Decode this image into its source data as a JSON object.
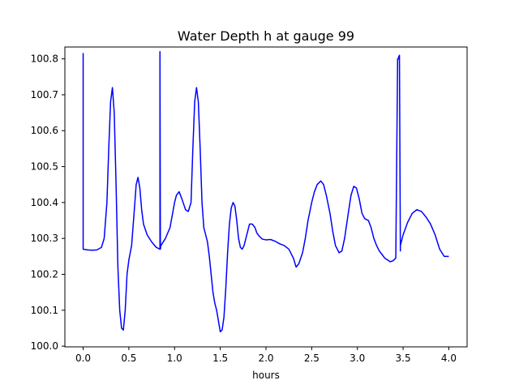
{
  "chart_data": {
    "type": "line",
    "title": "Water Depth h at gauge 99",
    "xlabel": "hours",
    "ylabel": "",
    "xlim": [
      -0.2,
      4.2
    ],
    "ylim": [
      99.998,
      100.833
    ],
    "xticks": [
      0.0,
      0.5,
      1.0,
      1.5,
      2.0,
      2.5,
      3.0,
      3.5,
      4.0
    ],
    "xtick_labels": [
      "0.0",
      "0.5",
      "1.0",
      "1.5",
      "2.0",
      "2.5",
      "3.0",
      "3.5",
      "4.0"
    ],
    "yticks": [
      100.0,
      100.1,
      100.2,
      100.3,
      100.4,
      100.5,
      100.6,
      100.7,
      100.8
    ],
    "ytick_labels": [
      "100.0",
      "100.1",
      "100.2",
      "100.3",
      "100.4",
      "100.5",
      "100.6",
      "100.7",
      "100.8"
    ],
    "grid": false,
    "legend": "none",
    "series": [
      {
        "color": "#0000ff",
        "x": [
          0.0,
          0.0,
          0.0,
          0.05,
          0.1,
          0.15,
          0.2,
          0.23,
          0.26,
          0.28,
          0.3,
          0.32,
          0.34,
          0.36,
          0.38,
          0.4,
          0.42,
          0.44,
          0.46,
          0.48,
          0.5,
          0.53,
          0.56,
          0.58,
          0.6,
          0.62,
          0.64,
          0.66,
          0.7,
          0.75,
          0.8,
          0.84,
          0.84,
          0.845,
          0.85,
          0.9,
          0.95,
          1.0,
          1.02,
          1.05,
          1.08,
          1.12,
          1.15,
          1.18,
          1.2,
          1.22,
          1.24,
          1.26,
          1.28,
          1.3,
          1.32,
          1.34,
          1.36,
          1.38,
          1.4,
          1.42,
          1.44,
          1.46,
          1.48,
          1.5,
          1.52,
          1.54,
          1.56,
          1.58,
          1.6,
          1.62,
          1.64,
          1.66,
          1.68,
          1.7,
          1.72,
          1.74,
          1.76,
          1.78,
          1.8,
          1.82,
          1.85,
          1.88,
          1.9,
          1.93,
          1.96,
          2.0,
          2.05,
          2.1,
          2.15,
          2.2,
          2.25,
          2.3,
          2.33,
          2.36,
          2.4,
          2.43,
          2.46,
          2.5,
          2.53,
          2.56,
          2.6,
          2.63,
          2.66,
          2.7,
          2.73,
          2.76,
          2.8,
          2.83,
          2.86,
          2.9,
          2.93,
          2.96,
          2.99,
          3.02,
          3.05,
          3.08,
          3.12,
          3.15,
          3.18,
          3.21,
          3.24,
          3.27,
          3.3,
          3.33,
          3.36,
          3.39,
          3.42,
          3.44,
          3.45,
          3.45,
          3.46,
          3.47,
          3.47,
          3.5,
          3.55,
          3.6,
          3.65,
          3.7,
          3.75,
          3.8,
          3.85,
          3.9,
          3.95,
          4.0
        ],
        "y": [
          100.27,
          100.815,
          100.27,
          100.268,
          100.267,
          100.268,
          100.275,
          100.3,
          100.4,
          100.55,
          100.68,
          100.72,
          100.65,
          100.45,
          100.22,
          100.1,
          100.05,
          100.045,
          100.1,
          100.2,
          100.24,
          100.28,
          100.38,
          100.45,
          100.47,
          100.44,
          100.38,
          100.34,
          100.31,
          100.29,
          100.275,
          100.27,
          100.82,
          100.27,
          100.28,
          100.3,
          100.33,
          100.4,
          100.42,
          100.43,
          100.41,
          100.38,
          100.375,
          100.4,
          100.55,
          100.68,
          100.72,
          100.68,
          100.55,
          100.4,
          100.33,
          100.31,
          100.29,
          100.25,
          100.2,
          100.15,
          100.12,
          100.1,
          100.07,
          100.04,
          100.045,
          100.08,
          100.16,
          100.26,
          100.34,
          100.385,
          100.4,
          100.39,
          100.35,
          100.3,
          100.275,
          100.27,
          100.28,
          100.3,
          100.32,
          100.34,
          100.34,
          100.33,
          100.315,
          100.305,
          100.298,
          100.296,
          100.297,
          100.292,
          100.285,
          100.28,
          100.27,
          100.245,
          100.22,
          100.23,
          100.26,
          100.3,
          100.35,
          100.4,
          100.43,
          100.45,
          100.46,
          100.45,
          100.42,
          100.37,
          100.32,
          100.28,
          100.26,
          100.265,
          100.3,
          100.37,
          100.42,
          100.445,
          100.44,
          100.41,
          100.37,
          100.355,
          100.35,
          100.33,
          100.3,
          100.28,
          100.265,
          100.255,
          100.245,
          100.24,
          100.235,
          100.238,
          100.245,
          100.8,
          100.8,
          100.805,
          100.81,
          100.265,
          100.28,
          100.31,
          100.345,
          100.37,
          100.38,
          100.375,
          100.36,
          100.34,
          100.31,
          100.27,
          100.25,
          100.25
        ]
      }
    ]
  }
}
